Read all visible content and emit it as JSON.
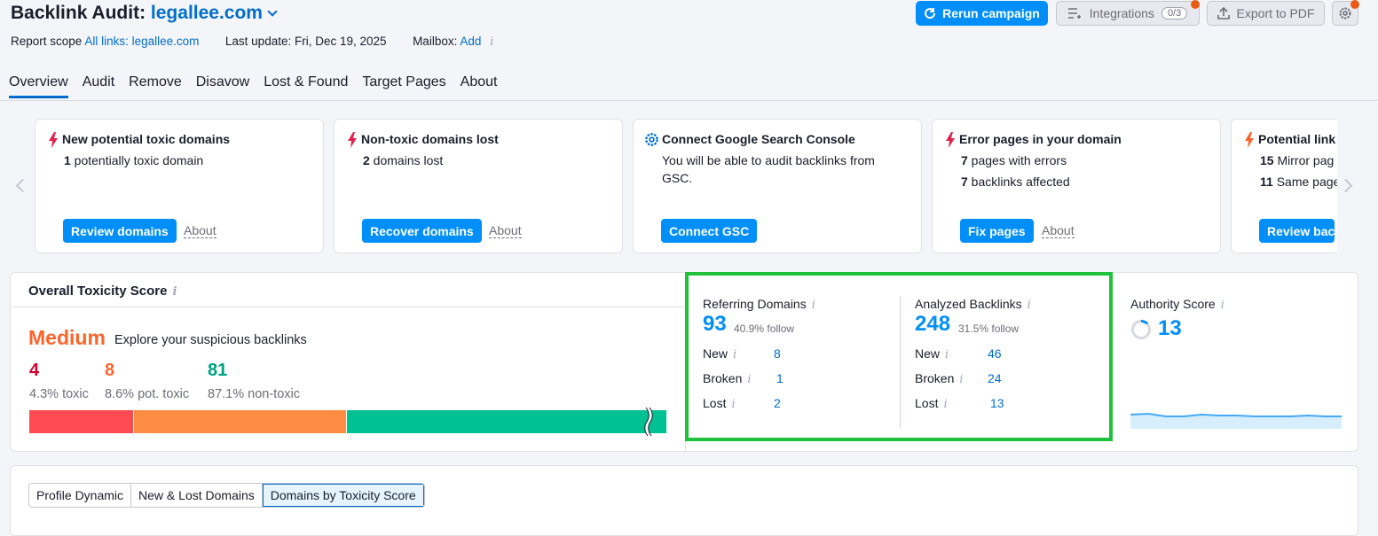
{
  "header": {
    "title_prefix": "Backlink Audit:",
    "domain": "legallee.com",
    "report_scope_label": "Report scope",
    "report_scope_value": "All links: legallee.com",
    "last_update": "Last update: Fri, Dec 19, 2025",
    "mailbox_label": "Mailbox:",
    "mailbox_value": "Add",
    "rerun_label": "Rerun campaign",
    "integrations_label": "Integrations",
    "integrations_count": "0/3",
    "export_label": "Export to PDF"
  },
  "tabs": [
    "Overview",
    "Audit",
    "Remove",
    "Disavow",
    "Lost & Found",
    "Target Pages",
    "About"
  ],
  "cards": [
    {
      "title": "New potential toxic domains",
      "line1_num": "1",
      "line1_text": " potentially toxic domain",
      "line2_num": "",
      "line2_text": "",
      "button": "Review domains",
      "about": "About",
      "icon": "bolt-icon"
    },
    {
      "title": "Non-toxic domains lost",
      "line1_num": "2",
      "line1_text": " domains lost",
      "line2_num": "",
      "line2_text": "",
      "button": "Recover domains",
      "about": "About",
      "icon": "bolt-icon"
    },
    {
      "title": "Connect Google Search Console",
      "line1_num": "",
      "line1_text": "You will be able to audit backlinks from",
      "line2_num": "",
      "line2_text": "GSC.",
      "button": "Connect GSC",
      "about": "",
      "icon": "gear-icon"
    },
    {
      "title": "Error pages in your domain",
      "line1_num": "7",
      "line1_text": " pages with errors",
      "line2_num": "7",
      "line2_text": " backlinks affected",
      "button": "Fix pages",
      "about": "About",
      "icon": "bolt-icon"
    },
    {
      "title": "Potential link",
      "line1_num": "15",
      "line1_text": " Mirror pag",
      "line2_num": "11",
      "line2_text": " Same page",
      "button": "Review bac",
      "about": "",
      "icon": "bolt-icon"
    }
  ],
  "toxicity": {
    "title": "Overall Toxicity Score",
    "level": "Medium",
    "explore": "Explore your suspicious backlinks",
    "toxic_num": "4",
    "toxic_sub": "4.3% toxic",
    "pot_num": "8",
    "pot_sub": "8.6% pot. toxic",
    "non_num": "81",
    "non_sub": "87.1% non-toxic",
    "shares": [
      4.3,
      8.6,
      87.1
    ]
  },
  "referring": {
    "label": "Referring Domains",
    "value": "93",
    "follow": "40.9% follow",
    "rows": [
      {
        "label": "New",
        "value": "8"
      },
      {
        "label": "Broken",
        "value": "1"
      },
      {
        "label": "Lost",
        "value": "2"
      }
    ]
  },
  "backlinks": {
    "label": "Analyzed Backlinks",
    "value": "248",
    "follow": "31.5% follow",
    "rows": [
      {
        "label": "New",
        "value": "46"
      },
      {
        "label": "Broken",
        "value": "24"
      },
      {
        "label": "Lost",
        "value": "13"
      }
    ]
  },
  "authority": {
    "label": "Authority Score",
    "value": "13"
  },
  "segments": [
    "Profile Dynamic",
    "New & Lost Domains",
    "Domains by Toxicity Score"
  ],
  "colors": {
    "primary": "#008ff8",
    "toxic": "#ff4953",
    "pot_toxic": "#ff8c43",
    "non_toxic": "#00c192",
    "highlight": "#1fc13a"
  }
}
